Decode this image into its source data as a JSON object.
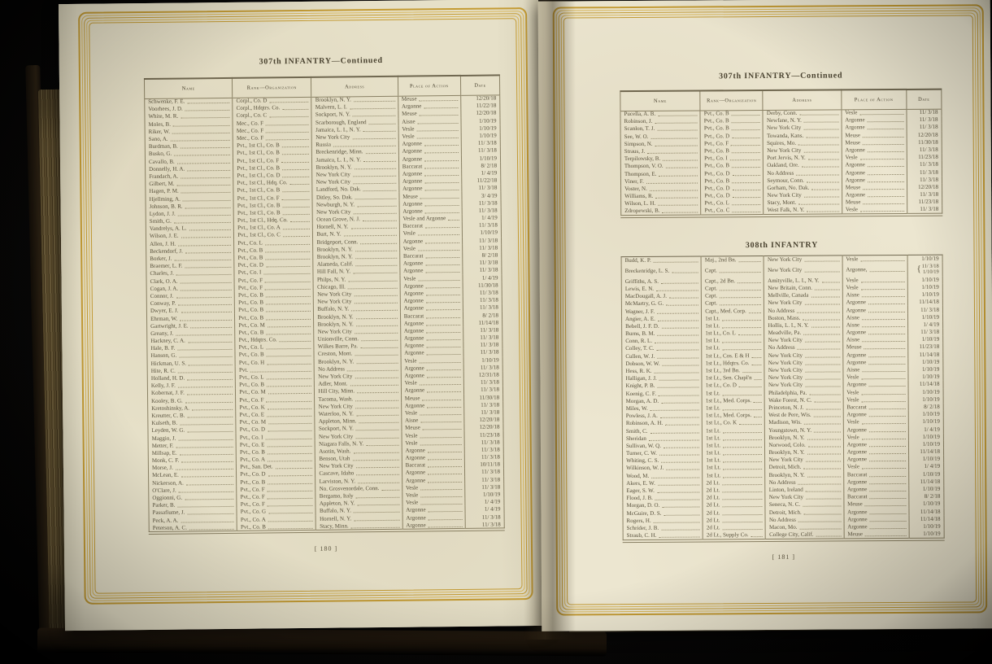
{
  "left_page": {
    "title": "307th INFANTRY—Continued",
    "page_number": "[ 180 ]",
    "columns": [
      "Name",
      "Rank—Organization",
      "Address",
      "Place of Action",
      "Date"
    ],
    "rows": [
      [
        "Schwenke, F. E.",
        "Corpl., Co. D",
        "Brooklyn, N. Y.",
        "Meuse",
        "12/20/18"
      ],
      [
        "Voorhees, J. D.",
        "Corpl., Hdqtrs. Co.",
        "Malvern, L. I.",
        "Argonne",
        "11/22/18"
      ],
      [
        "White, M. R.",
        "Corpl., Co. C",
        "Sockport, N. Y.",
        "Meuse",
        "12/20/18"
      ],
      [
        "Moles, B.",
        "Mec., Co. F",
        "Scarborough, England",
        "Aisne",
        "1/10/19"
      ],
      [
        "Riker, W.",
        "Mec., Co. F",
        "Jamaica, L. I., N. Y.",
        "Vesle",
        "1/10/19"
      ],
      [
        "Sano, A.",
        "Mec., Co. F",
        "New York City",
        "Vesle",
        "1/10/19"
      ],
      [
        "Burdman, B.",
        "Pvt., 1st Cl., Co. B",
        "Russia",
        "Argonne",
        "11/ 3/18"
      ],
      [
        "Busko, G.",
        "Pvt., 1st Cl., Co. B",
        "Breckenridge, Minn.",
        "Argonne",
        "11/ 3/18"
      ],
      [
        "Cavallo, B.",
        "Pvt., 1st Cl., Co. F",
        "Jamaica, L. I., N. Y.",
        "Argonne",
        "1/10/19"
      ],
      [
        "Donnelly, H. A.",
        "Pvt., 1st Cl., Co. B",
        "Brooklyn, N. Y.",
        "Baccarat",
        "8/ 2/18"
      ],
      [
        "Frandach, A.",
        "Pvt., 1st Cl., Co. D",
        "New York City",
        "Argonne",
        "1/ 4/19"
      ],
      [
        "Gilbert, M.",
        "Pvt., 1st Cl., Hdq. Co.",
        "New York City",
        "Argonne",
        "11/22/18"
      ],
      [
        "Hagen, P. M.",
        "Pvt., 1st Cl., Co. B",
        "Landford, No. Dak.",
        "Argonne",
        "11/ 3/18"
      ],
      [
        "Hjellming, A.",
        "Pvt., 1st Cl., Co. F",
        "Ditley, So. Dak.",
        "Meuse",
        "3/ 4/19"
      ],
      [
        "Johnson, B. R.",
        "Pvt., 1st Cl., Co. B",
        "Newburgh, N. Y.",
        "Argonne",
        "11/ 3/18"
      ],
      [
        "Lydon, J. J.",
        "Pvt., 1st Cl., Co. B",
        "New York City",
        "Argonne",
        "11/ 3/18"
      ],
      [
        "Smith, G.",
        "Pvt., 1st Cl., Hdq. Co.",
        "Ocean Grove, N. J.",
        "Vesle and Argonne",
        "1/ 4/19"
      ],
      [
        "Vandrelys, A. L.",
        "Pvt., 1st Cl., Co. A",
        "Hornell, N. Y.",
        "Baccarat",
        "11/ 3/18"
      ],
      [
        "Wilson, J. E.",
        "Pvt., 1st Cl., Co. C",
        "Burt, N. Y.",
        "Vesle",
        "1/10/19"
      ],
      [
        "Allen, J. H.",
        "Pvt., Co. L",
        "Bridgeport, Conn.",
        "Argonne",
        "11/ 3/18"
      ],
      [
        "Beckendorf, J.",
        "Pvt., Co. B",
        "Brooklyn, N. Y.",
        "Vesle",
        "11/ 3/18"
      ],
      [
        "Borker, J.",
        "Pvt., Co. B",
        "Brooklyn, N. Y.",
        "Baccarat",
        "8/ 2/18"
      ],
      [
        "Braemer, L. F.",
        "Pvt., Co. D",
        "Alameda, Calif.",
        "Argonne",
        "11/ 3/18"
      ],
      [
        "Charles, J.",
        "Pvt., Co. I",
        "Hill Fall, N. Y.",
        "Argonne",
        "11/ 3/18"
      ],
      [
        "Clark, O. A.",
        "Pvt., Co. F",
        "Philps, N. Y.",
        "Vesle",
        "1/ 4/19"
      ],
      [
        "Cogan, J. A.",
        "Pvt., Co. F",
        "Chicago, Ill.",
        "Argonne",
        "11/30/18"
      ],
      [
        "Connor, J.",
        "Pvt., Co. B",
        "New York City",
        "Argonne",
        "11/ 3/18"
      ],
      [
        "Conway, P.",
        "Pvt., Co. B",
        "New York City",
        "Argonne",
        "11/ 3/18"
      ],
      [
        "Dwyer, E. J.",
        "Pvt., Co. B",
        "Buffalo, N. Y.",
        "Argonne",
        "11/ 3/18"
      ],
      [
        "Ehrman, W.",
        "Pvt., Co. B",
        "Brooklyn, N. Y.",
        "Baccarat",
        "8/ 2/18"
      ],
      [
        "Gartwright, J. E.",
        "Pvt., Co. M",
        "Brooklyn, N. Y.",
        "Argonne",
        "11/14/18"
      ],
      [
        "Greany, J.",
        "Pvt., Co. B",
        "New York City",
        "Argonne",
        "11/ 3/18"
      ],
      [
        "Hackney, C. A.",
        "Pvt., Hdqtrs. Co.",
        "Unionville, Conn.",
        "Argonne",
        "11/ 3/18"
      ],
      [
        "Hale, B. F.",
        "Pvt., Co. L",
        "Wilkes Barre, Pa.",
        "Argonne",
        "11/ 3/18"
      ],
      [
        "Hanson, G.",
        "Pvt., Co. B",
        "Creston, Mont.",
        "Argonne",
        "11/ 3/18"
      ],
      [
        "Hickman, U. S.",
        "Pvt., Co. H",
        "Brooklyn, N. Y.",
        "Vesle",
        "1/10/19"
      ],
      [
        "Hite, R. C.",
        "Pvt.",
        "No Address",
        "Argonne",
        "11/ 3/18"
      ],
      [
        "Holland, H. D.",
        "Pvt., Co. L",
        "New York City",
        "Argonne",
        "12/31/18"
      ],
      [
        "Kelly, J. F.",
        "Pvt., Co. B",
        "Adler, Mont.",
        "Vesle",
        "11/ 3/18"
      ],
      [
        "Kobernat, J. F.",
        "Pvt., Co. M",
        "Hill City, Minn.",
        "Argonne",
        "11/ 3/18"
      ],
      [
        "Kooley, B. G.",
        "Pvt., Co. F",
        "Tacoma, Wash.",
        "Meuse",
        "11/30/18"
      ],
      [
        "Kretoshinsky, A.",
        "Pvt., Co. K",
        "New York City",
        "Argonne",
        "11/ 3/18"
      ],
      [
        "Kreutter, C. B.",
        "Pvt., Co. E",
        "Waterloo, N. Y.",
        "Vesle",
        "11/ 3/18"
      ],
      [
        "Kulseth, B.",
        "Pvt., Co. M",
        "Appleton, Minn.",
        "Aisne",
        "12/20/18"
      ],
      [
        "Leyden, W. G.",
        "Pvt., Co. D",
        "Sockport, N. Y.",
        "Meuse",
        "12/20/18"
      ],
      [
        "Maggio, J.",
        "Pvt., Co. I",
        "New York City",
        "Vesle",
        "11/23/18"
      ],
      [
        "Metter, F.",
        "Pvt., Co. E",
        "Niagara Falls, N. Y.",
        "Vesle",
        "11/ 3/18"
      ],
      [
        "Millsap, E.",
        "Pvt., Co. B",
        "Asotin, Wash.",
        "Argonne",
        "11/ 3/18"
      ],
      [
        "Monk, C. F.",
        "Pvt., Co. A",
        "Benson, Utah",
        "Argonne",
        "11/ 3/18"
      ],
      [
        "Morse, J.",
        "Pvt., San. Det.",
        "New York City",
        "Baccarat",
        "10/11/18"
      ],
      [
        "McLean, E.",
        "Pvt., Co. D",
        "Cascave, Idaho",
        "Argonne",
        "11/ 3/18"
      ],
      [
        "Nickerson, A.",
        "Pvt., Co. B",
        "Larviston, N. Y.",
        "Argonne",
        "11/ 3/18"
      ],
      [
        "O'Clare, J.",
        "Pvt., Co. F",
        "No. Grosvenordale, Conn.",
        "Vesle",
        "11/ 3/18"
      ],
      [
        "Oggionni, G.",
        "Pvt., Co. F",
        "Bergamo, Italy",
        "Vesle",
        "1/10/19"
      ],
      [
        "Parker, B.",
        "Pvt., Co. F",
        "Appleton, N. Y.",
        "Vesle",
        "1/ 4/19"
      ],
      [
        "Passafiume, J.",
        "Pvt., Co. G",
        "Buffalo, N. Y.",
        "Argonne",
        "1/ 4/19"
      ],
      [
        "Peck, A. A.",
        "Pvt., Co. A",
        "Hornell, N. Y.",
        "Argonne",
        "11/ 3/18"
      ],
      [
        "Peterson, A. C.",
        "Pvt., Co. B",
        "Stacy, Minn.",
        "Argonne",
        "11/ 3/18"
      ]
    ]
  },
  "right_page": {
    "page_number": "[ 181 ]",
    "section1": {
      "title": "307th INFANTRY—Continued",
      "columns": [
        "Name",
        "Rank—Organization",
        "Address",
        "Place of Action",
        "Date"
      ],
      "rows": [
        [
          "Pucella, A. B.",
          "Pvt., Co. B",
          "Derby, Conn.",
          "Vesle",
          "11/ 3/18"
        ],
        [
          "Robinson, J.",
          "Pvt., Co. B",
          "Newfane, N. Y.",
          "Argonne",
          "11/ 3/18"
        ],
        [
          "Scanlon, T. J.",
          "Pvt., Co. B",
          "New York City",
          "Argonne",
          "11/ 3/18"
        ],
        [
          "See, W. O.",
          "Pvt., Co. D",
          "Towanda, Kans.",
          "Meuse",
          "12/20/18"
        ],
        [
          "Simpson, N.",
          "Pvt., Co. F",
          "Squires, Mo.",
          "Meuse",
          "11/30/18"
        ],
        [
          "Straus, J.",
          "Pvt., Co. B",
          "New York City",
          "Argonne",
          "11/ 3/18"
        ],
        [
          "Terpilowsky, B.",
          "Pvt., Co. I",
          "Port Jervis, N. Y.",
          "Vesle",
          "11/23/18"
        ],
        [
          "Thompson, V. O.",
          "Pvt., Co. B",
          "Oakland, Ore.",
          "Argonne",
          "11/ 3/18"
        ],
        [
          "Thompson, E.",
          "Pvt., Co. D",
          "No Address",
          "Argonne",
          "11/ 3/18"
        ],
        [
          "Viner, F.",
          "Pvt., Co. B",
          "Seymour, Conn.",
          "Argonne",
          "11/ 3/18"
        ],
        [
          "Voster, N.",
          "Pvt., Co. D",
          "Gorham, No. Dak.",
          "Meuse",
          "12/20/18"
        ],
        [
          "Williams, R.",
          "Pvt., Co. D",
          "New York City",
          "Argonne",
          "11/ 3/18"
        ],
        [
          "Wilson, L. H.",
          "Pvt., Co. L",
          "Stacy, Mont.",
          "Meuse",
          "11/23/18"
        ],
        [
          "Zdropewski, B.",
          "Pvt., Co. C",
          "West Falk, N. Y.",
          "Vesle",
          "11/ 3/18"
        ]
      ]
    },
    "section2": {
      "title": "308th INFANTRY",
      "rows": [
        [
          "Budd, K. P.",
          "Maj., 2nd Bn.",
          "New York City",
          "Vesle",
          "1/10/19"
        ],
        [
          "Breckenridge, L. S.",
          "Capt.",
          "New York City",
          "Argonne,",
          [
            "11/ 3/18",
            "1/10/19"
          ]
        ],
        [
          "Griffiths, A. S.",
          "Capt., 2d Bn.",
          "Amityville, L. I., N. Y.",
          "Vesle",
          "1/10/19"
        ],
        [
          "Lewis, E. N.",
          "Capt.",
          "New Britain, Conn.",
          "Vesle",
          "1/10/19"
        ],
        [
          "MacDougall, A. J.",
          "Capt.",
          "Mellville, Canada",
          "Aisne",
          "1/10/19"
        ],
        [
          "McMartry, G. G.",
          "Capt.",
          "New York City",
          "Argonne",
          "11/14/18"
        ],
        [
          "Wagner, J. F.",
          "Capt., Med. Corp.",
          "No Address",
          "Argonne",
          "11/ 3/18"
        ],
        [
          "Angier, A. E.",
          "1st Lt.",
          "Boston, Mass.",
          "Aisne",
          "1/10/19"
        ],
        [
          "Bebell, J. F. D.",
          "1st Lt.",
          "Hollis, L. I., N. Y.",
          "Aisne",
          "1/ 4/19"
        ],
        [
          "Burns, B. M.",
          "1st Lt., Co. L",
          "Meadville, Pa.",
          "Argonne",
          "11/ 3/18"
        ],
        [
          "Conn, R. L.",
          "1st Lt.",
          "New York City",
          "Aisne",
          "1/10/19"
        ],
        [
          "Colley, T. C.",
          "1st Lt.",
          "No Address",
          "Meuse",
          "11/23/18"
        ],
        [
          "Cullen, W. J.",
          "1st Lt., Cos. E & H",
          "New York City",
          "Argonne",
          "11/14/18"
        ],
        [
          "Dobson, W. W.",
          "1st Lt., Hdqtrs. Co.",
          "New York City",
          "Argonne",
          "1/10/19"
        ],
        [
          "Hess, R. K.",
          "1st Lt., 3rd Bn.",
          "New York City",
          "Aisne",
          "1/10/19"
        ],
        [
          "Halligan, J. J.",
          "1st Lt., Sen. Chapl'n",
          "New York City",
          "Vesle",
          "1/10/19"
        ],
        [
          "Knight, P. B.",
          "1st Lt., Co. D",
          "New York City",
          "Argonne",
          "11/14/18"
        ],
        [
          "Koenig, C. F.",
          "1st Lt.",
          "Philadelphia, Pa.",
          "Vesle",
          "1/10/19"
        ],
        [
          "Morgan, A. D.",
          "1st Lt., Med. Corps.",
          "Wake Forest, N. C.",
          "Vesle",
          "1/10/19"
        ],
        [
          "Miles, W.",
          "1st Lt.",
          "Princeton, N. J.",
          "Baccarat",
          "8/ 2/18"
        ],
        [
          "Powless, J. A.",
          "1st Lt., Med. Corps.",
          "West de Pere, Wis.",
          "Argonne",
          "1/10/19"
        ],
        [
          "Robinson, A. H.",
          "1st Lt., Co. K",
          "Madison, Wis.",
          "Vesle",
          "1/10/19"
        ],
        [
          "Smith, C.",
          "1st Lt.",
          "Youngstown, N. Y.",
          "Argonne",
          "1/ 4/19"
        ],
        [
          "Sheridan",
          "1st Lt.",
          "Brooklyn, N. Y.",
          "Vesle",
          "1/10/19"
        ],
        [
          "Sullivan, W. Q.",
          "1st Lt.",
          "Norwood, Colo.",
          "Argonne",
          "1/10/19"
        ],
        [
          "Turner, C. W.",
          "1st Lt.",
          "Brooklyn, N. Y.",
          "Argonne",
          "11/14/18"
        ],
        [
          "Whiting, C. S.",
          "1st Lt.",
          "New York City",
          "Argonne",
          "1/10/19"
        ],
        [
          "Wilkinson, W. J.",
          "1st Lt.",
          "Detroit, Mich.",
          "Vesle",
          "1/ 4/19"
        ],
        [
          "Wood, M.",
          "1st Lt.",
          "Brooklyn, N. Y.",
          "Baccarat",
          "1/10/19"
        ],
        [
          "Akers, E. W.",
          "2d Lt.",
          "No Address",
          "Argonne",
          "11/14/18"
        ],
        [
          "Eager, S. W.",
          "2d Lt.",
          "Linton, Ireland",
          "Argonne",
          "1/10/19"
        ],
        [
          "Flood, J. B.",
          "2d Lt.",
          "New York City",
          "Baccarat",
          "8/ 2/18"
        ],
        [
          "Morgan, D. O.",
          "2d Lt.",
          "Seneca, N. C.",
          "Meuse",
          "1/10/19"
        ],
        [
          "McGuire, D. S.",
          "2d Lt.",
          "Detroit, Mich.",
          "Argonne",
          "11/14/18"
        ],
        [
          "Rogers, H.",
          "2d Lt.",
          "No Address",
          "Argonne",
          "11/14/18"
        ],
        [
          "Schrider, J. B.",
          "2d Lt.",
          "Macon, Mo.",
          "Argonne",
          "1/10/19"
        ],
        [
          "Straub, C. H.",
          "2d Lt., Supply Co.",
          "College City, Calif.",
          "Meuse",
          "1/10/19"
        ]
      ]
    }
  }
}
